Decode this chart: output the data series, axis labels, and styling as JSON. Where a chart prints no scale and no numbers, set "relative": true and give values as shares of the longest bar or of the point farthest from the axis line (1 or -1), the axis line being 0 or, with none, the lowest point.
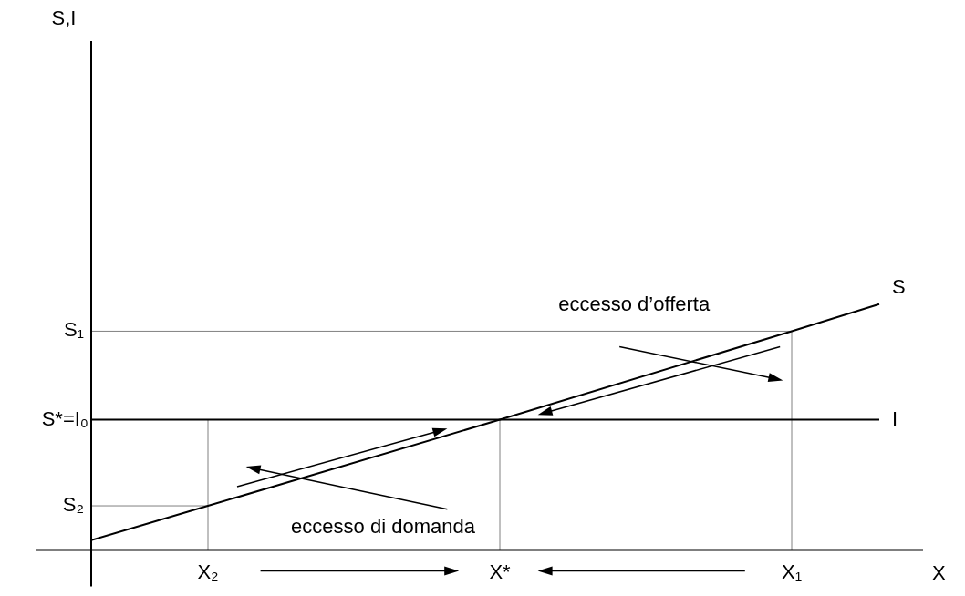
{
  "chart_data": {
    "type": "line",
    "relative": true,
    "xlabel": "X",
    "categories": [
      null,
      null,
      null,
      null,
      "X₂",
      null,
      null,
      null,
      null,
      null,
      null,
      null,
      null,
      null,
      "X*",
      null,
      null,
      null,
      null,
      null,
      null,
      null,
      null,
      null,
      "X₁",
      null,
      null,
      null
    ],
    "series": [
      {
        "name": "S",
        "color": "#000000",
        "values": [
          0.04,
          null,
          null,
          null,
          0.18,
          null,
          null,
          null,
          null,
          null,
          null,
          null,
          null,
          null,
          0.53,
          null,
          null,
          null,
          null,
          null,
          null,
          null,
          null,
          null,
          0.89,
          null,
          null,
          1
        ]
      },
      {
        "name": "I",
        "color": "#000000",
        "values": [
          0.53,
          null,
          null,
          null,
          null,
          null,
          null,
          null,
          null,
          null,
          null,
          null,
          null,
          null,
          null,
          null,
          null,
          null,
          null,
          null,
          null,
          null,
          null,
          null,
          null,
          null,
          null,
          0.53
        ]
      }
    ],
    "annotations": [
      {
        "text": "S₂",
        "x": "X₂",
        "y": 0.18
      },
      "S*=I₀",
      {
        "text": "S₁",
        "x": "X₁",
        "y": 0.89
      },
      "eccesso d’offerta",
      "eccesso di domanda",
      "S,I"
    ]
  }
}
